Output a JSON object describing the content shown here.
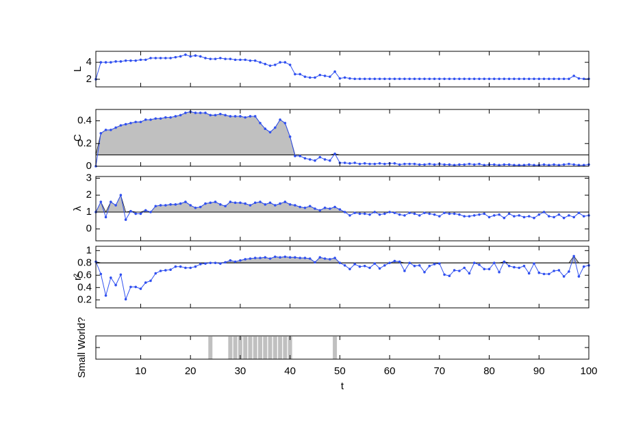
{
  "chart_data": [
    {
      "type": "line",
      "ylabel": "L",
      "xlim": [
        1,
        100
      ],
      "ylim": [
        1.1,
        5.3
      ],
      "yticks": [
        2,
        4
      ],
      "xticks": [
        10,
        20,
        30,
        40,
        50,
        60,
        70,
        80,
        90,
        100
      ],
      "color": "#3050f0",
      "x": [
        1,
        2,
        3,
        4,
        5,
        6,
        7,
        8,
        9,
        10,
        11,
        12,
        13,
        14,
        15,
        16,
        17,
        18,
        19,
        20,
        21,
        22,
        23,
        24,
        25,
        26,
        27,
        28,
        29,
        30,
        31,
        32,
        33,
        34,
        35,
        36,
        37,
        38,
        39,
        40,
        41,
        42,
        43,
        44,
        45,
        46,
        47,
        48,
        49,
        50,
        51,
        52,
        53,
        54,
        55,
        56,
        57,
        58,
        59,
        60,
        61,
        62,
        63,
        64,
        65,
        66,
        67,
        68,
        69,
        70,
        71,
        72,
        73,
        74,
        75,
        76,
        77,
        78,
        79,
        80,
        81,
        82,
        83,
        84,
        85,
        86,
        87,
        88,
        89,
        90,
        91,
        92,
        93,
        94,
        95,
        96,
        97,
        98,
        99,
        100
      ],
      "values": [
        2.0,
        4.0,
        4.0,
        4.0,
        4.1,
        4.1,
        4.2,
        4.2,
        4.2,
        4.3,
        4.3,
        4.5,
        4.5,
        4.5,
        4.5,
        4.5,
        4.6,
        4.7,
        4.9,
        4.7,
        4.8,
        4.7,
        4.5,
        4.4,
        4.4,
        4.5,
        4.4,
        4.4,
        4.3,
        4.3,
        4.3,
        4.2,
        4.2,
        4.0,
        3.8,
        3.6,
        3.7,
        4.0,
        4.0,
        3.7,
        2.6,
        2.6,
        2.3,
        2.2,
        2.2,
        2.5,
        2.4,
        2.3,
        2.9,
        2.1,
        2.2,
        2.1,
        2.05,
        2.05,
        2.05,
        2.05,
        2.05,
        2.05,
        2.05,
        2.05,
        2.05,
        2.05,
        2.05,
        2.05,
        2.05,
        2.05,
        2.05,
        2.05,
        2.05,
        2.05,
        2.05,
        2.05,
        2.05,
        2.05,
        2.05,
        2.05,
        2.05,
        2.05,
        2.05,
        2.05,
        2.05,
        2.05,
        2.05,
        2.05,
        2.05,
        2.05,
        2.05,
        2.05,
        2.05,
        2.05,
        2.05,
        2.05,
        2.05,
        2.05,
        2.05,
        2.05,
        2.4,
        2.1,
        2.05,
        2.05
      ]
    },
    {
      "type": "line",
      "ylabel": "C",
      "xlim": [
        1,
        100
      ],
      "ylim": [
        0,
        0.5
      ],
      "yticks": [
        0,
        0.2,
        0.4
      ],
      "xticks": [
        10,
        20,
        30,
        40,
        50,
        60,
        70,
        80,
        90,
        100
      ],
      "color": "#3050f0",
      "reference_line": 0.1,
      "fill_color": "#c0c0c0",
      "x": [
        1,
        2,
        3,
        4,
        5,
        6,
        7,
        8,
        9,
        10,
        11,
        12,
        13,
        14,
        15,
        16,
        17,
        18,
        19,
        20,
        21,
        22,
        23,
        24,
        25,
        26,
        27,
        28,
        29,
        30,
        31,
        32,
        33,
        34,
        35,
        36,
        37,
        38,
        39,
        40,
        41,
        42,
        43,
        44,
        45,
        46,
        47,
        48,
        49,
        50,
        51,
        52,
        53,
        54,
        55,
        56,
        57,
        58,
        59,
        60,
        61,
        62,
        63,
        64,
        65,
        66,
        67,
        68,
        69,
        70,
        71,
        72,
        73,
        74,
        75,
        76,
        77,
        78,
        79,
        80,
        81,
        82,
        83,
        84,
        85,
        86,
        87,
        88,
        89,
        90,
        91,
        92,
        93,
        94,
        95,
        96,
        97,
        98,
        99,
        100
      ],
      "values": [
        0,
        0.29,
        0.32,
        0.32,
        0.34,
        0.36,
        0.37,
        0.38,
        0.39,
        0.39,
        0.41,
        0.41,
        0.42,
        0.42,
        0.43,
        0.43,
        0.44,
        0.45,
        0.47,
        0.48,
        0.47,
        0.47,
        0.47,
        0.45,
        0.45,
        0.46,
        0.45,
        0.44,
        0.44,
        0.44,
        0.43,
        0.44,
        0.44,
        0.38,
        0.33,
        0.3,
        0.34,
        0.41,
        0.38,
        0.26,
        0.09,
        0.09,
        0.07,
        0.06,
        0.05,
        0.08,
        0.06,
        0.05,
        0.11,
        0.03,
        0.03,
        0.025,
        0.03,
        0.02,
        0.025,
        0.02,
        0.02,
        0.025,
        0.02,
        0.025,
        0.025,
        0.015,
        0.02,
        0.02,
        0.02,
        0.015,
        0.015,
        0.02,
        0.015,
        0.02,
        0.015,
        0.015,
        0.01,
        0.015,
        0.015,
        0.02,
        0.015,
        0.02,
        0.01,
        0.015,
        0.015,
        0.01,
        0.015,
        0.015,
        0.01,
        0.01,
        0.01,
        0.015,
        0.01,
        0.01,
        0.015,
        0.01,
        0.015,
        0.01,
        0.015,
        0.02,
        0.015,
        0.01,
        0.01,
        0.015
      ]
    },
    {
      "type": "line",
      "ylabel": "λ",
      "xlim": [
        1,
        100
      ],
      "ylim": [
        -0.7,
        3.1
      ],
      "yticks": [
        0,
        1,
        2,
        3
      ],
      "xticks": [
        10,
        20,
        30,
        40,
        50,
        60,
        70,
        80,
        90,
        100
      ],
      "color": "#3050f0",
      "reference_line": 1,
      "fill_color": "#c0c0c0",
      "x": [
        1,
        2,
        3,
        4,
        5,
        6,
        7,
        8,
        9,
        10,
        11,
        12,
        13,
        14,
        15,
        16,
        17,
        18,
        19,
        20,
        21,
        22,
        23,
        24,
        25,
        26,
        27,
        28,
        29,
        30,
        31,
        32,
        33,
        34,
        35,
        36,
        37,
        38,
        39,
        40,
        41,
        42,
        43,
        44,
        45,
        46,
        47,
        48,
        49,
        50,
        51,
        52,
        53,
        54,
        55,
        56,
        57,
        58,
        59,
        60,
        61,
        62,
        63,
        64,
        65,
        66,
        67,
        68,
        69,
        70,
        71,
        72,
        73,
        74,
        75,
        76,
        77,
        78,
        79,
        80,
        81,
        82,
        83,
        84,
        85,
        86,
        87,
        88,
        89,
        90,
        91,
        92,
        93,
        94,
        95,
        96,
        97,
        98,
        99,
        100
      ],
      "values": [
        1.0,
        1.6,
        0.7,
        1.6,
        1.4,
        2.0,
        0.55,
        1.05,
        0.9,
        0.9,
        1.1,
        1.0,
        1.35,
        1.4,
        1.4,
        1.45,
        1.45,
        1.5,
        1.6,
        1.4,
        1.25,
        1.3,
        1.5,
        1.55,
        1.6,
        1.45,
        1.35,
        1.6,
        1.55,
        1.55,
        1.5,
        1.4,
        1.55,
        1.6,
        1.45,
        1.55,
        1.4,
        1.5,
        1.6,
        1.45,
        1.4,
        1.3,
        1.25,
        1.35,
        1.2,
        1.1,
        1.25,
        1.2,
        1.3,
        1.15,
        1.0,
        0.8,
        0.95,
        0.9,
        0.9,
        0.85,
        1.0,
        0.85,
        0.9,
        1.0,
        0.95,
        0.85,
        0.8,
        0.95,
        0.9,
        0.8,
        0.95,
        0.9,
        0.85,
        0.75,
        0.95,
        0.9,
        0.9,
        0.85,
        0.75,
        0.75,
        0.8,
        0.85,
        0.9,
        0.7,
        0.8,
        0.85,
        0.65,
        0.9,
        0.75,
        0.8,
        0.7,
        0.75,
        0.65,
        0.85,
        1.0,
        0.75,
        0.7,
        0.85,
        0.65,
        0.8,
        0.7,
        0.95,
        0.75,
        0.8
      ]
    },
    {
      "type": "line",
      "ylabel": "r²",
      "xlim": [
        1,
        100
      ],
      "ylim": [
        0.07,
        1.07
      ],
      "yticks": [
        0.2,
        0.4,
        0.6,
        0.8,
        1
      ],
      "xticks": [
        10,
        20,
        30,
        40,
        50,
        60,
        70,
        80,
        90,
        100
      ],
      "color": "#3050f0",
      "reference_line": 0.8,
      "fill_color": "#c0c0c0",
      "x": [
        1,
        2,
        3,
        4,
        5,
        6,
        7,
        8,
        9,
        10,
        11,
        12,
        13,
        14,
        15,
        16,
        17,
        18,
        19,
        20,
        21,
        22,
        23,
        24,
        25,
        26,
        27,
        28,
        29,
        30,
        31,
        32,
        33,
        34,
        35,
        36,
        37,
        38,
        39,
        40,
        41,
        42,
        43,
        44,
        45,
        46,
        47,
        48,
        49,
        50,
        51,
        52,
        53,
        54,
        55,
        56,
        57,
        58,
        59,
        60,
        61,
        62,
        63,
        64,
        65,
        66,
        67,
        68,
        69,
        70,
        71,
        72,
        73,
        74,
        75,
        76,
        77,
        78,
        79,
        80,
        81,
        82,
        83,
        84,
        85,
        86,
        87,
        88,
        89,
        90,
        91,
        92,
        93,
        94,
        95,
        96,
        97,
        98,
        99,
        100
      ],
      "values": [
        0.82,
        0.62,
        0.27,
        0.56,
        0.44,
        0.61,
        0.21,
        0.41,
        0.41,
        0.38,
        0.48,
        0.51,
        0.63,
        0.67,
        0.68,
        0.69,
        0.74,
        0.74,
        0.72,
        0.72,
        0.74,
        0.78,
        0.79,
        0.8,
        0.8,
        0.79,
        0.81,
        0.84,
        0.82,
        0.84,
        0.86,
        0.87,
        0.88,
        0.88,
        0.89,
        0.87,
        0.9,
        0.89,
        0.9,
        0.89,
        0.89,
        0.88,
        0.88,
        0.87,
        0.81,
        0.89,
        0.87,
        0.86,
        0.88,
        0.8,
        0.76,
        0.7,
        0.78,
        0.74,
        0.75,
        0.72,
        0.79,
        0.71,
        0.76,
        0.8,
        0.83,
        0.82,
        0.67,
        0.8,
        0.75,
        0.76,
        0.65,
        0.75,
        0.78,
        0.79,
        0.61,
        0.59,
        0.68,
        0.67,
        0.72,
        0.63,
        0.8,
        0.77,
        0.7,
        0.7,
        0.8,
        0.65,
        0.82,
        0.75,
        0.73,
        0.72,
        0.75,
        0.63,
        0.79,
        0.64,
        0.62,
        0.62,
        0.67,
        0.68,
        0.58,
        0.66,
        0.91,
        0.58,
        0.74,
        0.76
      ]
    },
    {
      "type": "bar",
      "ylabel": "Small World?",
      "xlabel": "t",
      "xlim": [
        1,
        100
      ],
      "ylim": [
        0,
        1
      ],
      "xticks": [
        10,
        20,
        30,
        40,
        50,
        60,
        70,
        80,
        90,
        100
      ],
      "color": "#c0c0c0",
      "x": [
        24,
        28,
        29,
        30,
        31,
        32,
        33,
        34,
        35,
        36,
        37,
        38,
        39,
        40,
        49
      ],
      "values": [
        1,
        1,
        1,
        1,
        1,
        1,
        1,
        1,
        1,
        1,
        1,
        1,
        1,
        1,
        1
      ]
    }
  ]
}
